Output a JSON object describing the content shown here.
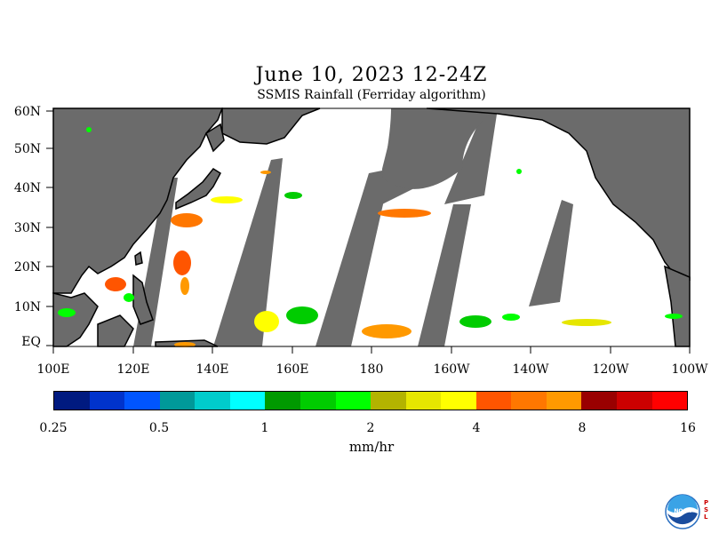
{
  "title": "June 10, 2023 12-24Z",
  "subtitle": "SSMIS Rainfall (Ferriday algorithm)",
  "map": {
    "lat_labels": [
      "60N",
      "50N",
      "40N",
      "30N",
      "20N",
      "10N",
      "EQ"
    ],
    "lon_labels": [
      "100E",
      "120E",
      "140E",
      "160E",
      "180",
      "160W",
      "140W",
      "120W",
      "100W"
    ],
    "lat_range": [
      0,
      60
    ],
    "lon_range_east": [
      100,
      260
    ],
    "colors": {
      "land": "#6b6b6b",
      "no_data": "#6b6b6b",
      "coast": "#000000"
    }
  },
  "colorbar": {
    "tick_labels": [
      "0.25",
      "0.5",
      "1",
      "2",
      "4",
      "8",
      "16"
    ],
    "units": "mm/hr",
    "colors": [
      "#001a80",
      "#0033cc",
      "#0055ff",
      "#009999",
      "#00cccc",
      "#00ffff",
      "#009900",
      "#00cc00",
      "#00ff00",
      "#b3b300",
      "#e6e600",
      "#ffff00",
      "#ff5500",
      "#ff7700",
      "#ff9900",
      "#990000",
      "#cc0000",
      "#ff0000"
    ]
  },
  "logo": {
    "text": "NOAA",
    "side_text": "P S L"
  }
}
